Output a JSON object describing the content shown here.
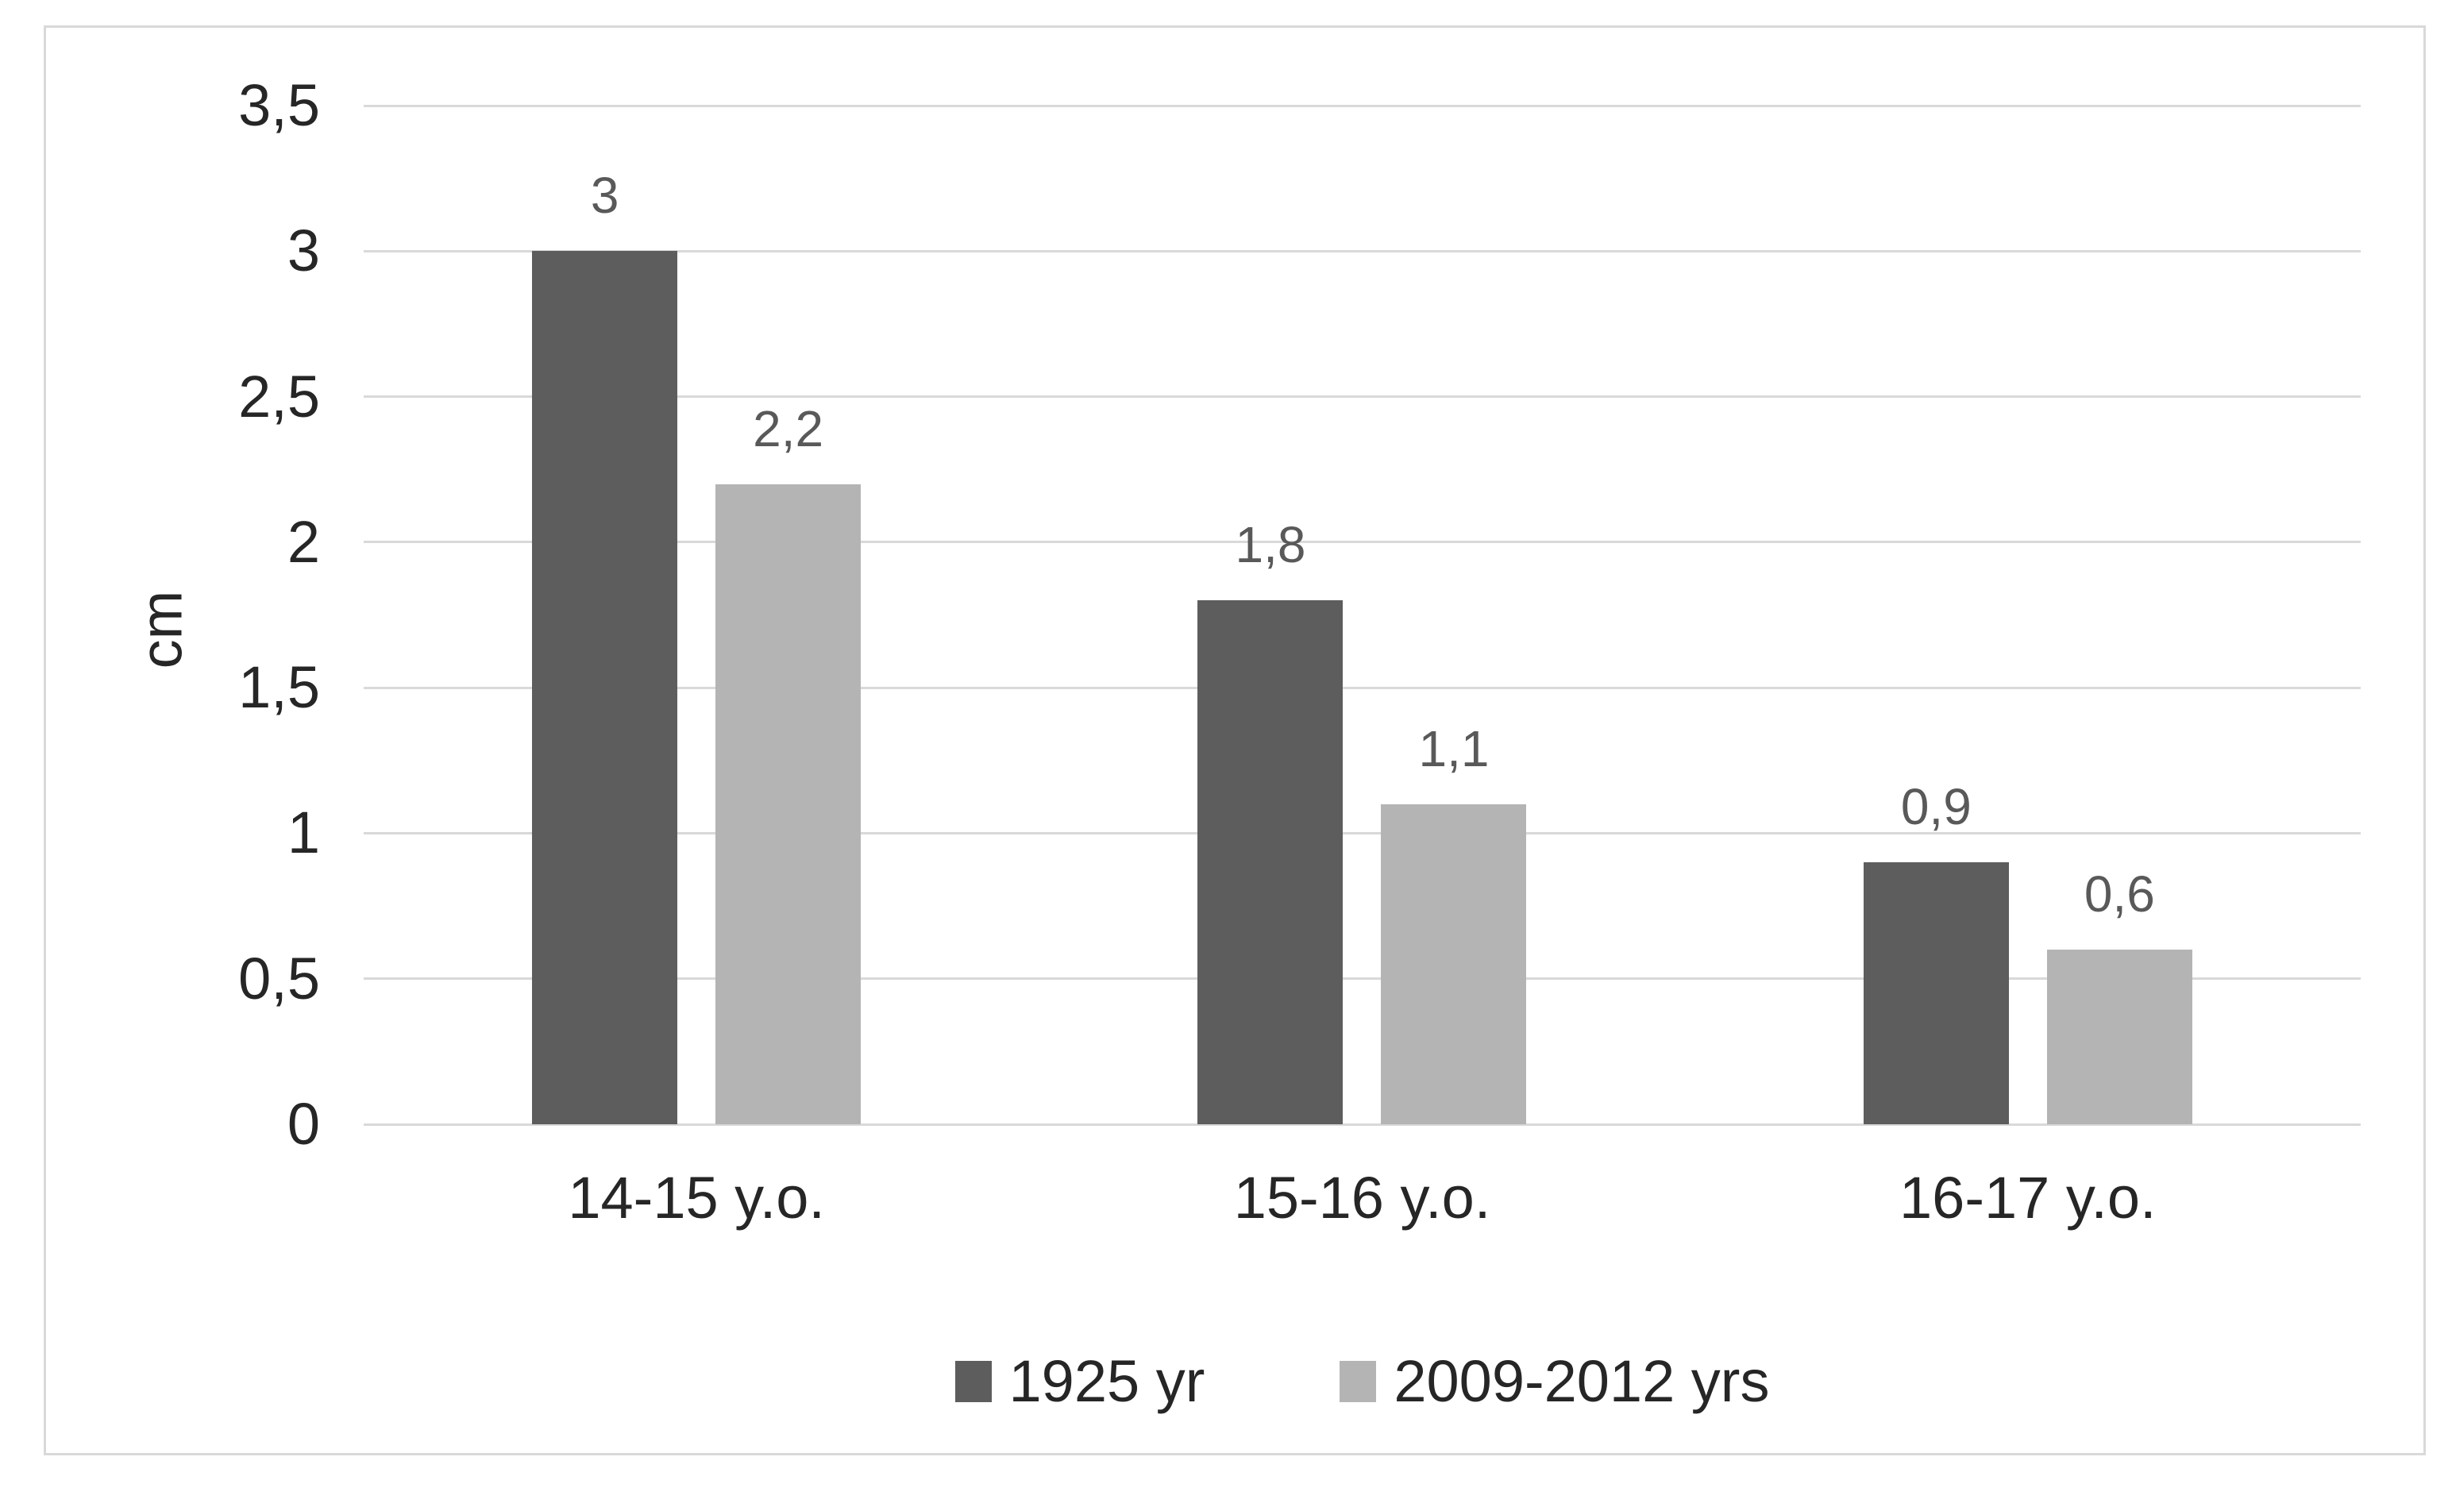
{
  "chart_data": {
    "type": "bar",
    "title": "",
    "xlabel": "",
    "ylabel": "cm",
    "ylim": [
      0,
      3.5
    ],
    "ytick_labels": [
      "0",
      "0,5",
      "1",
      "1,5",
      "2",
      "2,5",
      "3",
      "3,5"
    ],
    "ytick_values": [
      0,
      0.5,
      1,
      1.5,
      2,
      2.5,
      3,
      3.5
    ],
    "grid": true,
    "decimal_separator": ",",
    "legend_position": "bottom",
    "categories": [
      "14-15 y.o.",
      "15-16 y.o.",
      "16-17 y.o."
    ],
    "series": [
      {
        "name": "1925 yr",
        "color": "#5d5d5d",
        "values": [
          3,
          1.8,
          0.9
        ],
        "data_labels": [
          "3",
          "1,8",
          "0,9"
        ]
      },
      {
        "name": "2009-2012 yrs",
        "color": "#b4b4b4",
        "values": [
          2.2,
          1.1,
          0.6
        ],
        "data_labels": [
          "2,2",
          "1,1",
          "0,6"
        ]
      }
    ]
  },
  "colors": {
    "frame_border": "#d9d9d9",
    "gridline": "#d9d9d9",
    "axis_text": "#262626",
    "data_label_text": "#595959",
    "background": "#ffffff"
  }
}
